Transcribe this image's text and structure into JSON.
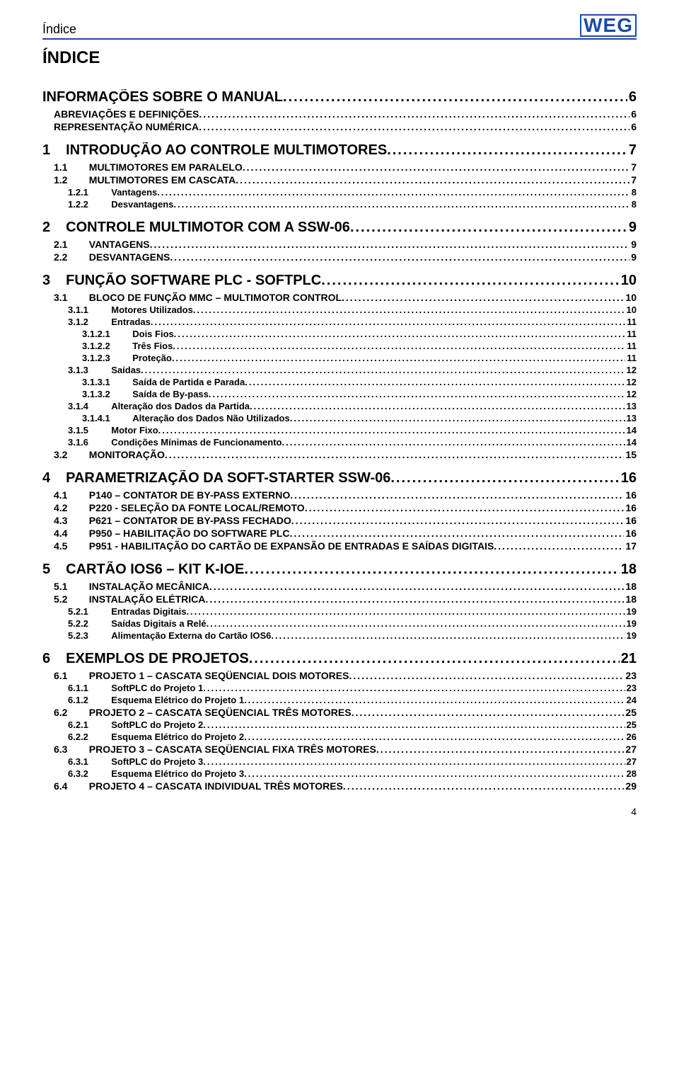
{
  "header": {
    "label": "Índice",
    "logo_text": "WEG",
    "logo_color": "#1a4ba8"
  },
  "title": "ÍNDICE",
  "page_number": "4",
  "toc": [
    {
      "level": "top",
      "num": "",
      "label": "INFORMAÇÕES SOBRE O MANUAL",
      "page": "6"
    },
    {
      "level": "sub",
      "num": "",
      "label": "ABREVIAÇÕES E DEFINIÇÕES",
      "page": "6"
    },
    {
      "level": "sub",
      "num": "",
      "label": "REPRESENTAÇÃO NUMÉRICA",
      "page": "6"
    },
    {
      "level": "0",
      "num": "1",
      "label": "INTRODUÇÃO AO CONTROLE MULTIMOTORES",
      "page": "7"
    },
    {
      "level": "1",
      "num": "1.1",
      "label": "MULTIMOTORES EM PARALELO",
      "page": "7"
    },
    {
      "level": "1",
      "num": "1.2",
      "label": "MULTIMOTORES EM CASCATA",
      "page": "7"
    },
    {
      "level": "2",
      "num": "1.2.1",
      "label": "Vantagens",
      "page": "8"
    },
    {
      "level": "2",
      "num": "1.2.2",
      "label": "Desvantagens",
      "page": "8"
    },
    {
      "level": "0",
      "num": "2",
      "label": "CONTROLE MULTIMOTOR COM A SSW-06",
      "page": "9"
    },
    {
      "level": "1",
      "num": "2.1",
      "label": "VANTAGENS",
      "page": "9"
    },
    {
      "level": "1",
      "num": "2.2",
      "label": "DESVANTAGENS",
      "page": "9"
    },
    {
      "level": "0",
      "num": "3",
      "label": "FUNÇÃO SOFTWARE PLC - SOFTPLC",
      "page": "10"
    },
    {
      "level": "1",
      "num": "3.1",
      "label": "BLOCO DE FUNÇÃO MMC – MULTIMOTOR CONTROL",
      "page": "10"
    },
    {
      "level": "2",
      "num": "3.1.1",
      "label": "Motores Utilizados",
      "page": "10"
    },
    {
      "level": "2",
      "num": "3.1.2",
      "label": "Entradas",
      "page": "11"
    },
    {
      "level": "3",
      "num": "3.1.2.1",
      "label": "Dois Fios",
      "page": "11"
    },
    {
      "level": "3",
      "num": "3.1.2.2",
      "label": "Três Fios",
      "page": "11"
    },
    {
      "level": "3",
      "num": "3.1.2.3",
      "label": "Proteção",
      "page": "11"
    },
    {
      "level": "2",
      "num": "3.1.3",
      "label": "Saídas",
      "page": "12"
    },
    {
      "level": "3",
      "num": "3.1.3.1",
      "label": "Saída de Partida e Parada",
      "page": "12"
    },
    {
      "level": "3",
      "num": "3.1.3.2",
      "label": "Saída de By-pass",
      "page": "12"
    },
    {
      "level": "2",
      "num": "3.1.4",
      "label": "Alteração dos Dados da Partida",
      "page": "13"
    },
    {
      "level": "3",
      "num": "3.1.4.1",
      "label": "Alteração dos Dados Não Utilizados",
      "page": "13"
    },
    {
      "level": "2",
      "num": "3.1.5",
      "label": "Motor Fixo",
      "page": "14"
    },
    {
      "level": "2",
      "num": "3.1.6",
      "label": "Condições Mínimas de Funcionamento",
      "page": "14"
    },
    {
      "level": "1",
      "num": "3.2",
      "label": "MONITORAÇÃO",
      "page": "15"
    },
    {
      "level": "0",
      "num": "4",
      "label": "PARAMETRIZAÇÃO DA SOFT-STARTER SSW-06",
      "page": "16"
    },
    {
      "level": "1",
      "num": "4.1",
      "label": "P140 – CONTATOR DE BY-PASS EXTERNO",
      "page": "16"
    },
    {
      "level": "1",
      "num": "4.2",
      "label": "P220 - SELEÇÃO DA FONTE LOCAL/REMOTO",
      "page": "16"
    },
    {
      "level": "1",
      "num": "4.3",
      "label": "P621 – CONTATOR DE BY-PASS FECHADO",
      "page": "16"
    },
    {
      "level": "1",
      "num": "4.4",
      "label": "P950 – HABILITAÇÃO DO SOFTWARE PLC",
      "page": "16"
    },
    {
      "level": "1",
      "num": "4.5",
      "label": "P951 - HABILITAÇÃO DO CARTÃO DE EXPANSÃO DE ENTRADAS E SAÍDAS DIGITAIS",
      "page": "17"
    },
    {
      "level": "0",
      "num": "5",
      "label": "CARTÃO IOS6 – KIT K-IOE",
      "page": "18"
    },
    {
      "level": "1",
      "num": "5.1",
      "label": "INSTALAÇÃO MECÂNICA",
      "page": "18"
    },
    {
      "level": "1",
      "num": "5.2",
      "label": "INSTALAÇÃO ELÉTRICA",
      "page": "18"
    },
    {
      "level": "2",
      "num": "5.2.1",
      "label": "Entradas Digitais",
      "page": "19"
    },
    {
      "level": "2",
      "num": "5.2.2",
      "label": "Saídas Digitais a Relé",
      "page": "19"
    },
    {
      "level": "2",
      "num": "5.2.3",
      "label": "Alimentação Externa do Cartão IOS6",
      "page": "19"
    },
    {
      "level": "0",
      "num": "6",
      "label": "EXEMPLOS DE PROJETOS",
      "page": "21"
    },
    {
      "level": "1",
      "num": "6.1",
      "label": "PROJETO 1 – CASCATA SEQÜENCIAL DOIS MOTORES",
      "page": "23"
    },
    {
      "level": "2",
      "num": "6.1.1",
      "label": "SoftPLC do Projeto 1",
      "page": "23"
    },
    {
      "level": "2",
      "num": "6.1.2",
      "label": "Esquema Elétrico do Projeto 1",
      "page": "24"
    },
    {
      "level": "1",
      "num": "6.2",
      "label": "PROJETO 2 – CASCATA SEQÜENCIAL TRÊS MOTORES",
      "page": "25"
    },
    {
      "level": "2",
      "num": "6.2.1",
      "label": "SoftPLC do Projeto 2",
      "page": "25"
    },
    {
      "level": "2",
      "num": "6.2.2",
      "label": "Esquema Elétrico do Projeto 2",
      "page": "26"
    },
    {
      "level": "1",
      "num": "6.3",
      "label": "PROJETO 3 – CASCATA SEQÜENCIAL FIXA TRÊS MOTORES",
      "page": "27"
    },
    {
      "level": "2",
      "num": "6.3.1",
      "label": "SoftPLC do Projeto 3",
      "page": "27"
    },
    {
      "level": "2",
      "num": "6.3.2",
      "label": "Esquema Elétrico do Projeto 3",
      "page": "28"
    },
    {
      "level": "1",
      "num": "6.4",
      "label": "PROJETO 4 – CASCATA INDIVIDUAL TRÊS MOTORES",
      "page": "29"
    }
  ]
}
